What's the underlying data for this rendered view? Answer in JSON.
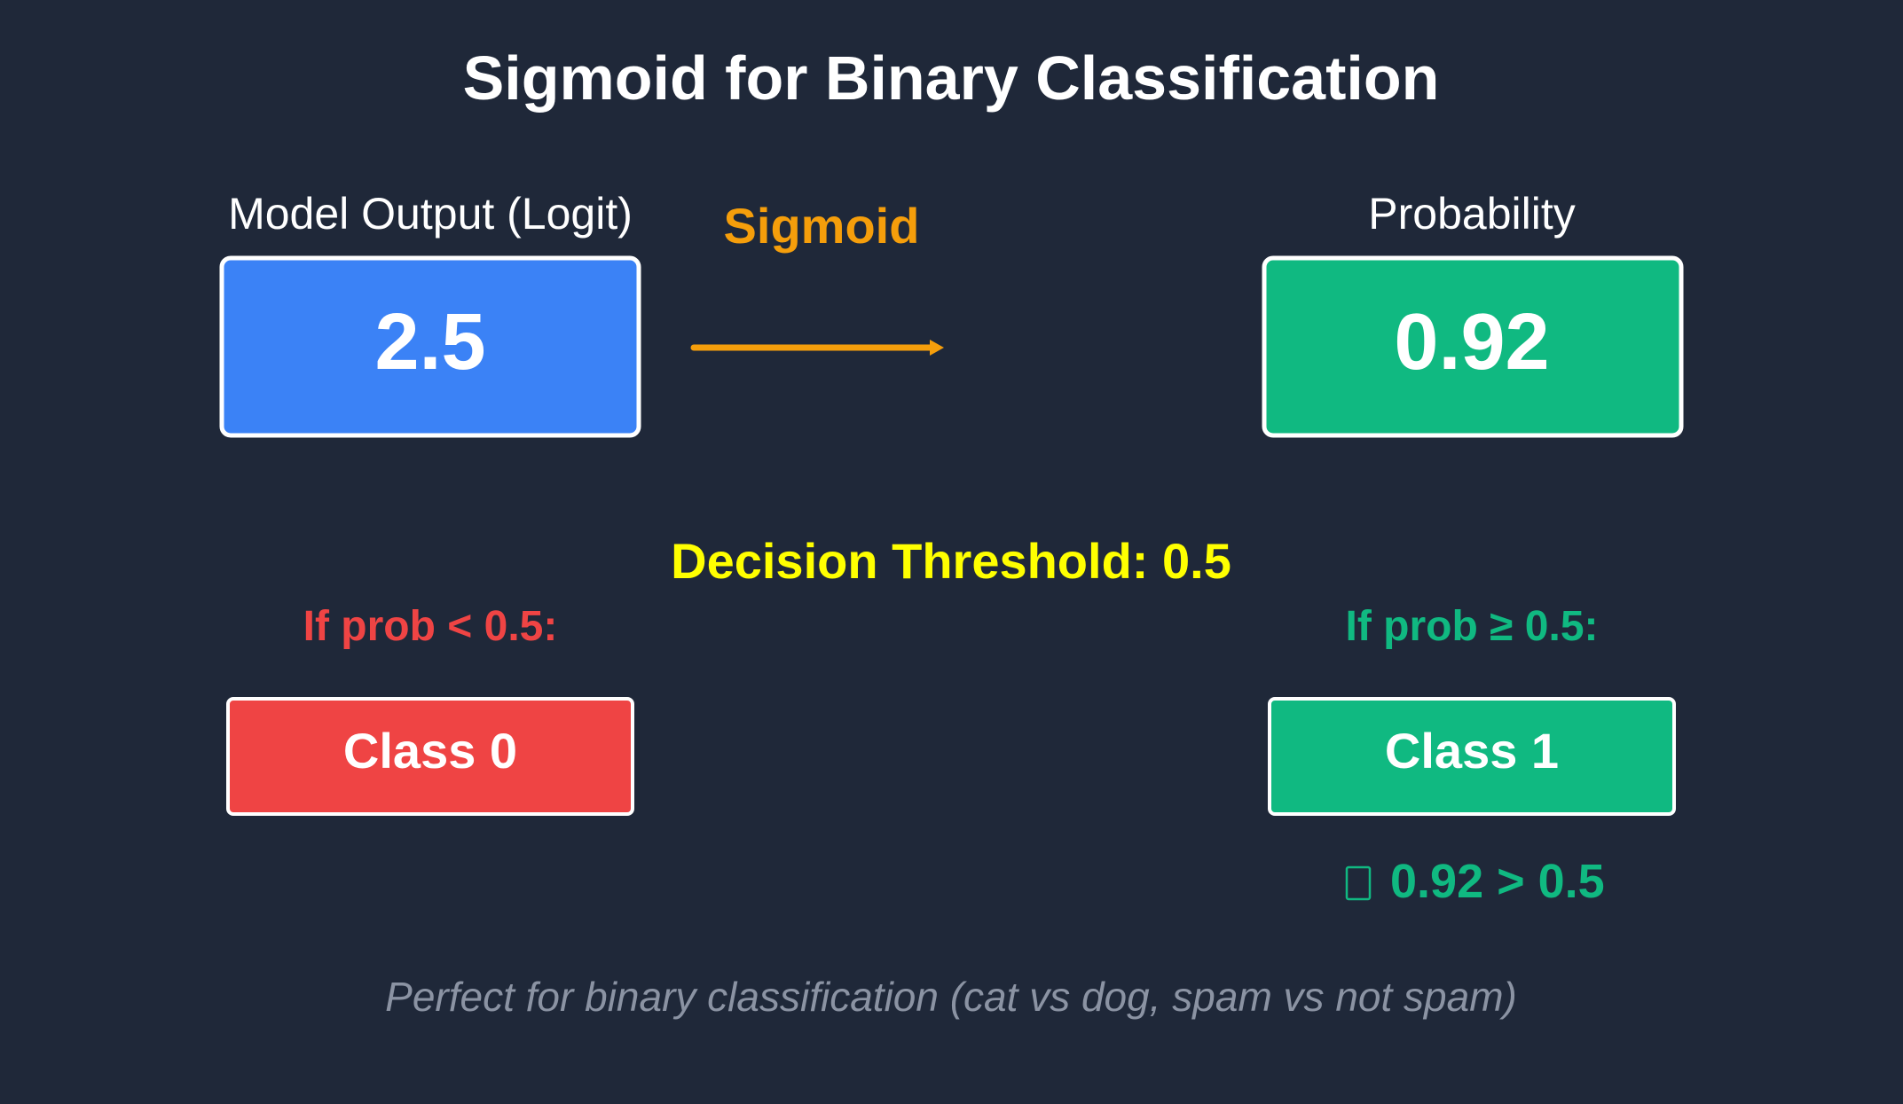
{
  "title": "Sigmoid for Binary Classification",
  "input": {
    "label": "Model Output (Logit)",
    "value": "2.5"
  },
  "transform": {
    "label": "Sigmoid"
  },
  "output": {
    "label": "Probability",
    "value": "0.92"
  },
  "threshold": {
    "text": "Decision Threshold: 0.5"
  },
  "class_0": {
    "condition": "If prob < 0.5:",
    "label": "Class 0"
  },
  "class_1": {
    "condition": "If prob ≥ 0.5:",
    "label": "Class 1",
    "check_icon": "check-mark-icon",
    "result": "0.92 > 0.5"
  },
  "footer": "Perfect for binary classification (cat vs dog, spam vs not spam)",
  "colors": {
    "background": "#1f2839",
    "input_box": "#3b82f6",
    "output_box": "#10b981",
    "class_0_box": "#ef4444",
    "class_1_box": "#10b981",
    "arrow": "#f59e0b",
    "threshold_text": "#ffff00",
    "class_0_text": "#ef4444",
    "class_1_text": "#10b981",
    "footer_text": "#8b93a3"
  }
}
